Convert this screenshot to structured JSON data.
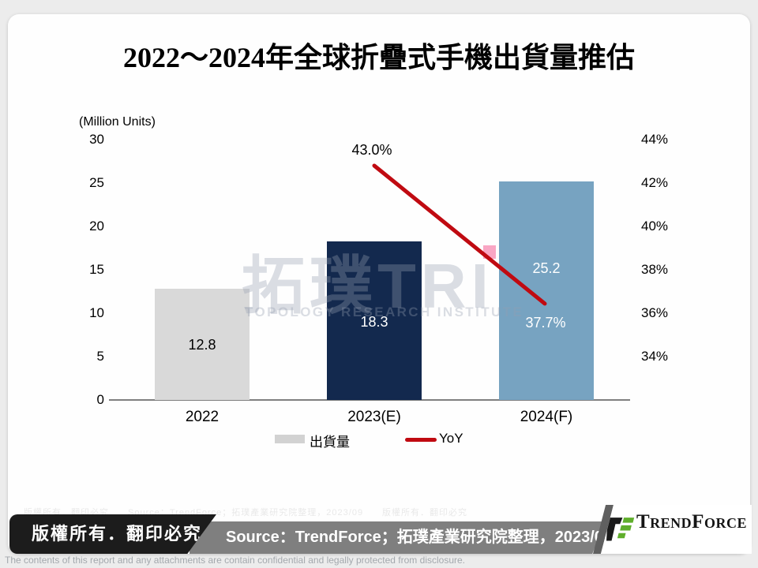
{
  "page": {
    "title": "2022～2024年全球折疊式手機出貨量推估",
    "watermark": {
      "big_text": "拓璞TRI",
      "subtitle": "TOPOLOGY RESEARCH INSTITUTE",
      "pink_color": "#f9a6c4"
    },
    "footer": {
      "copyright": "版權所有．翻印必究",
      "source": "Source：TrendForce；拓璞產業研究院整理，2023/09",
      "logo_text": "TrendForce",
      "logo_green": "#5fae2b",
      "logo_black": "#1a1a1a",
      "disclaimer": "The contents of this report and any attachments are contain confidential and legally protected from disclosure."
    }
  },
  "chart_data": {
    "type": "bar",
    "title": "2022～2024年全球折疊式手機出貨量推估",
    "unit_label": "(Million Units)",
    "categories": [
      "2022",
      "2023(E)",
      "2024(F)"
    ],
    "series": [
      {
        "name": "出貨量",
        "type": "bar",
        "axis": "left",
        "values": [
          12.8,
          18.3,
          25.2
        ],
        "value_labels": [
          "12.8",
          "18.3",
          "25.2"
        ],
        "label_colors": [
          "#000000",
          "#ffffff",
          "#ffffff"
        ],
        "bar_colors": [
          "#d9d9d9",
          "#13294e",
          "#77a3c1"
        ]
      },
      {
        "name": "YoY",
        "type": "line",
        "axis": "right",
        "values": [
          null,
          43.0,
          37.7
        ],
        "value_labels": [
          "",
          "43.0%",
          "37.7%"
        ],
        "label_colors": [
          "",
          "#000000",
          "#ffffff"
        ],
        "color": "#c00a11"
      }
    ],
    "left_axis": {
      "ticks": [
        "30",
        "25",
        "20",
        "15",
        "10",
        "5",
        "0"
      ],
      "min": 0,
      "max": 30
    },
    "right_axis": {
      "ticks": [
        "44%",
        "42%",
        "40%",
        "38%",
        "36%",
        "34%"
      ],
      "min": 34,
      "max": 44
    },
    "legend": [
      {
        "label": "出貨量",
        "marker": "swatch",
        "color": "#d2d2d2"
      },
      {
        "label": "YoY",
        "marker": "line",
        "color": "#c00a11"
      }
    ],
    "grid": false,
    "legend_position": "bottom"
  }
}
